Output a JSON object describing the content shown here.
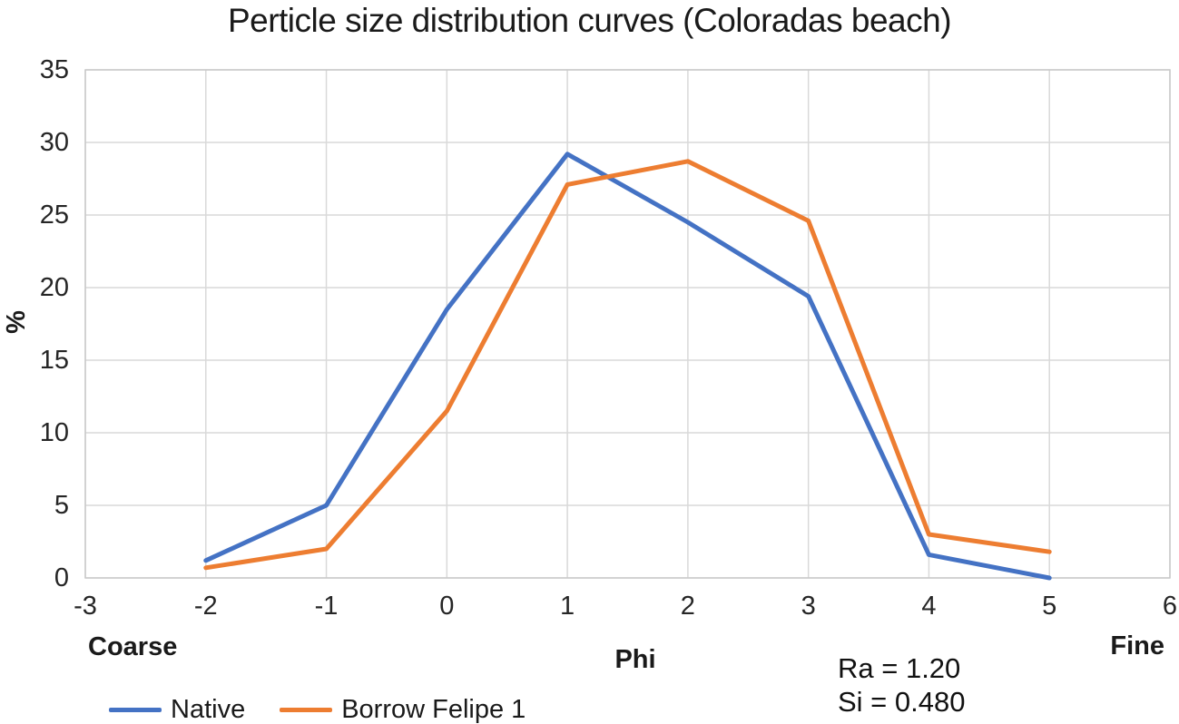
{
  "chart_data": {
    "type": "line",
    "title": "Perticle size distribution curves (Coloradas beach)",
    "xlabel": "Phi",
    "ylabel": "%",
    "xlim": [
      -3,
      6
    ],
    "ylim": [
      0,
      35
    ],
    "x_ticks": [
      -3,
      -2,
      -1,
      0,
      1,
      2,
      3,
      4,
      5,
      6
    ],
    "y_ticks": [
      0,
      5,
      10,
      15,
      20,
      25,
      30,
      35
    ],
    "grid": true,
    "grid_color": "#D9D9D9",
    "border_color": "#C9C9C9",
    "legend_position": "bottom-left",
    "x_axis_end_labels": {
      "left": "Coarse",
      "right": "Fine"
    },
    "series": [
      {
        "name": "Native",
        "color": "#4472C4",
        "x": [
          -2,
          -1,
          0,
          1,
          2,
          3,
          4,
          5
        ],
        "y": [
          1.2,
          5.0,
          18.5,
          29.2,
          24.5,
          19.4,
          1.6,
          0.0
        ]
      },
      {
        "name": "Borrow Felipe 1",
        "color": "#ED7D31",
        "x": [
          -2,
          -1,
          0,
          1,
          2,
          3,
          4,
          5
        ],
        "y": [
          0.7,
          2.0,
          11.5,
          27.1,
          28.7,
          24.6,
          3.0,
          1.8
        ]
      }
    ],
    "annotations": [
      "Ra = 1.20",
      "Si = 0.480"
    ]
  }
}
